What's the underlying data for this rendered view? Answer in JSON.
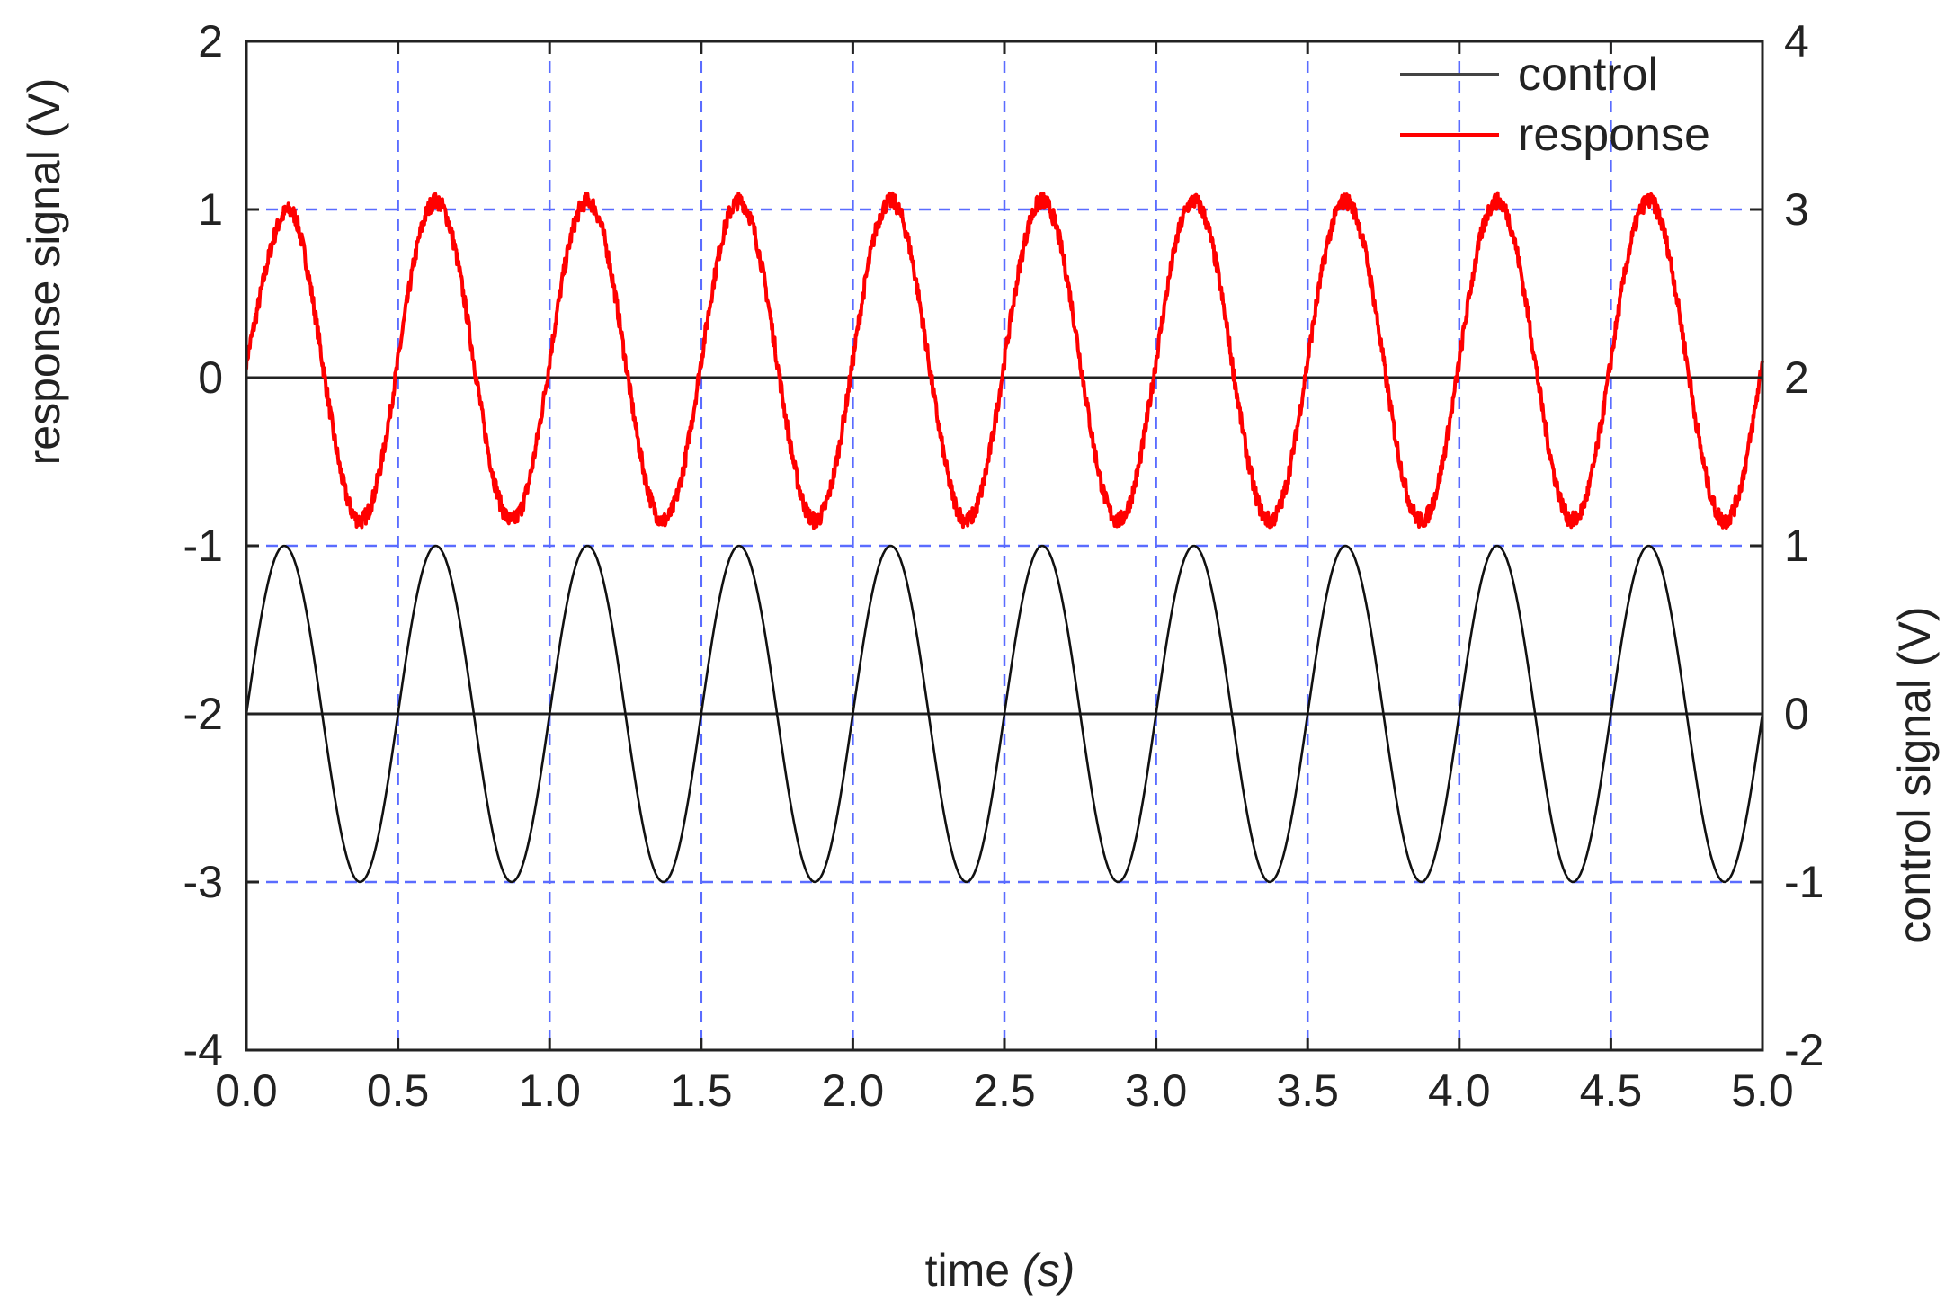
{
  "chart_data": {
    "type": "line",
    "xlabel_main": "time ",
    "xlabel_unit": "(s)",
    "ylabel_left": "response signal (V)",
    "ylabel_right": "control signal (V)",
    "xlim": [
      0,
      5
    ],
    "ylim_left": [
      -4,
      2
    ],
    "ylim_right": [
      -2,
      4
    ],
    "x_ticks": [
      "0.0",
      "0.5",
      "1.0",
      "1.5",
      "2.0",
      "2.5",
      "3.0",
      "3.5",
      "4.0",
      "4.5",
      "5.0"
    ],
    "y_ticks_left": [
      "-4",
      "-3",
      "-2",
      "-1",
      "0",
      "1",
      "2"
    ],
    "y_ticks_right": [
      "-2",
      "-1",
      "0",
      "1",
      "2",
      "3",
      "4"
    ],
    "grid": true,
    "legend_position": "top-right",
    "series": [
      {
        "name": "control",
        "axis": "right",
        "color": "#111111",
        "frequency_hz": 2,
        "amplitude": 1,
        "offset": 0,
        "phase_shift": 0,
        "noise": 0
      },
      {
        "name": "response",
        "axis": "left",
        "color": "#ff0000",
        "frequency_hz": 2,
        "amplitude": 0.95,
        "offset": 0.1,
        "phase_shift": 0.16,
        "noise": 0.05
      }
    ],
    "zero_lines": [
      {
        "axis": "left",
        "value": 0
      },
      {
        "axis": "right",
        "value": 0
      }
    ]
  }
}
